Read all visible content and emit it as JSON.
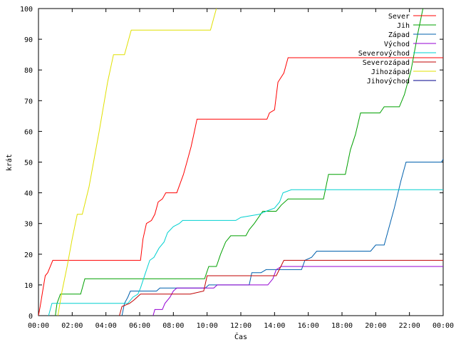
{
  "chart_data": {
    "type": "line",
    "title": "",
    "xlabel": "Čas",
    "ylabel": "krát",
    "xlim": [
      0,
      24
    ],
    "ylim": [
      0,
      100
    ],
    "grid": false,
    "legend_position": "top-right",
    "x_ticks": [
      {
        "value": 0,
        "label": "00:00"
      },
      {
        "value": 2,
        "label": "02:00"
      },
      {
        "value": 4,
        "label": "04:00"
      },
      {
        "value": 6,
        "label": "06:00"
      },
      {
        "value": 8,
        "label": "08:00"
      },
      {
        "value": 10,
        "label": "10:00"
      },
      {
        "value": 12,
        "label": "12:00"
      },
      {
        "value": 14,
        "label": "14:00"
      },
      {
        "value": 16,
        "label": "16:00"
      },
      {
        "value": 18,
        "label": "18:00"
      },
      {
        "value": 20,
        "label": "20:00"
      },
      {
        "value": 22,
        "label": "22:00"
      },
      {
        "value": 24,
        "label": "00:00"
      }
    ],
    "y_ticks": [
      {
        "value": 0,
        "label": "0"
      },
      {
        "value": 10,
        "label": "10"
      },
      {
        "value": 20,
        "label": "20"
      },
      {
        "value": 30,
        "label": "30"
      },
      {
        "value": 40,
        "label": "40"
      },
      {
        "value": 50,
        "label": "50"
      },
      {
        "value": 60,
        "label": "60"
      },
      {
        "value": 70,
        "label": "70"
      },
      {
        "value": 80,
        "label": "80"
      },
      {
        "value": 90,
        "label": "90"
      },
      {
        "value": 100,
        "label": "100"
      }
    ],
    "series": [
      {
        "name": "Sever",
        "color": "#ff0000",
        "points": [
          [
            0,
            0
          ],
          [
            0.1,
            3
          ],
          [
            0.25,
            8
          ],
          [
            0.4,
            13
          ],
          [
            0.55,
            14
          ],
          [
            0.85,
            18
          ],
          [
            6.05,
            18
          ],
          [
            6.2,
            25
          ],
          [
            6.4,
            30
          ],
          [
            6.7,
            31
          ],
          [
            6.9,
            33
          ],
          [
            7.1,
            37
          ],
          [
            7.35,
            38
          ],
          [
            7.55,
            40
          ],
          [
            8.2,
            40
          ],
          [
            8.6,
            46
          ],
          [
            8.8,
            50
          ],
          [
            9.05,
            55
          ],
          [
            9.25,
            60
          ],
          [
            9.4,
            64
          ],
          [
            13.55,
            64
          ],
          [
            13.7,
            66
          ],
          [
            14,
            67
          ],
          [
            14.2,
            76
          ],
          [
            14.55,
            79
          ],
          [
            14.8,
            84
          ],
          [
            24,
            84
          ]
        ]
      },
      {
        "name": "Jih",
        "color": "#00a000",
        "points": [
          [
            1.0,
            0
          ],
          [
            1.1,
            4
          ],
          [
            1.3,
            7
          ],
          [
            2.5,
            7
          ],
          [
            2.75,
            12
          ],
          [
            9.85,
            12
          ],
          [
            10.1,
            16
          ],
          [
            10.55,
            16
          ],
          [
            10.8,
            20
          ],
          [
            11.1,
            24
          ],
          [
            11.4,
            26
          ],
          [
            12.3,
            26
          ],
          [
            12.5,
            28
          ],
          [
            12.8,
            30
          ],
          [
            13.3,
            34
          ],
          [
            14.1,
            34
          ],
          [
            14.4,
            36
          ],
          [
            14.8,
            38
          ],
          [
            16.9,
            38
          ],
          [
            17.2,
            46
          ],
          [
            18.2,
            46
          ],
          [
            18.5,
            54
          ],
          [
            18.8,
            59
          ],
          [
            19.1,
            66
          ],
          [
            20.25,
            66
          ],
          [
            20.5,
            68
          ],
          [
            21.4,
            68
          ],
          [
            21.7,
            72
          ],
          [
            22.1,
            80
          ],
          [
            22.5,
            92
          ],
          [
            22.8,
            100
          ]
        ]
      },
      {
        "name": "Západ",
        "color": "#0060ad",
        "points": [
          [
            4.95,
            0
          ],
          [
            5.1,
            4
          ],
          [
            5.3,
            6
          ],
          [
            5.45,
            8
          ],
          [
            7.0,
            8
          ],
          [
            7.2,
            9
          ],
          [
            9.9,
            9
          ],
          [
            10.1,
            10
          ],
          [
            12.5,
            10
          ],
          [
            12.65,
            14
          ],
          [
            13.2,
            14
          ],
          [
            13.5,
            15
          ],
          [
            15.6,
            15
          ],
          [
            15.8,
            18
          ],
          [
            16.2,
            19
          ],
          [
            16.5,
            21
          ],
          [
            19.7,
            21
          ],
          [
            20,
            23
          ],
          [
            20.5,
            23
          ],
          [
            20.8,
            29
          ],
          [
            21.1,
            35
          ],
          [
            21.5,
            44
          ],
          [
            21.8,
            50
          ],
          [
            23.9,
            50
          ],
          [
            24,
            51
          ]
        ]
      },
      {
        "name": "Východ",
        "color": "#9400d3",
        "points": [
          [
            6.8,
            0
          ],
          [
            6.9,
            2
          ],
          [
            7.35,
            2
          ],
          [
            7.5,
            4
          ],
          [
            7.8,
            6
          ],
          [
            8.0,
            8
          ],
          [
            8.2,
            9
          ],
          [
            10.4,
            9
          ],
          [
            10.6,
            10
          ],
          [
            13.6,
            10
          ],
          [
            13.9,
            12
          ],
          [
            14.1,
            15
          ],
          [
            14.4,
            16
          ],
          [
            24,
            16
          ]
        ]
      },
      {
        "name": "Severovýchod",
        "color": "#00d0d0",
        "points": [
          [
            0.6,
            0
          ],
          [
            0.8,
            4
          ],
          [
            4.9,
            4
          ],
          [
            5.3,
            4
          ],
          [
            5.6,
            6
          ],
          [
            5.9,
            7
          ],
          [
            6.05,
            9
          ],
          [
            6.35,
            14
          ],
          [
            6.6,
            18
          ],
          [
            6.85,
            19
          ],
          [
            7.15,
            22
          ],
          [
            7.45,
            24
          ],
          [
            7.65,
            27
          ],
          [
            8.0,
            29
          ],
          [
            8.35,
            30
          ],
          [
            8.55,
            31
          ],
          [
            11.7,
            31
          ],
          [
            12.0,
            32
          ],
          [
            13.1,
            33
          ],
          [
            13.5,
            34
          ],
          [
            14.0,
            35
          ],
          [
            14.3,
            37
          ],
          [
            14.5,
            40
          ],
          [
            15,
            41
          ],
          [
            24,
            41
          ]
        ]
      },
      {
        "name": "Severozápad",
        "color": "#c00000",
        "points": [
          [
            4.8,
            0
          ],
          [
            4.95,
            3
          ],
          [
            5.4,
            4
          ],
          [
            5.65,
            5
          ],
          [
            6.05,
            7
          ],
          [
            9.0,
            7
          ],
          [
            9.8,
            8
          ],
          [
            10.0,
            13
          ],
          [
            14.1,
            13
          ],
          [
            14.55,
            18
          ],
          [
            24,
            18
          ]
        ]
      },
      {
        "name": "Jihozápad",
        "color": "#e0e000",
        "points": [
          [
            1.15,
            0
          ],
          [
            1.4,
            8
          ],
          [
            1.7,
            16
          ],
          [
            2.0,
            25
          ],
          [
            2.3,
            33
          ],
          [
            2.6,
            33
          ],
          [
            3.0,
            42
          ],
          [
            3.6,
            60
          ],
          [
            4.1,
            76
          ],
          [
            4.45,
            85
          ],
          [
            5.1,
            85
          ],
          [
            5.5,
            93
          ],
          [
            10.2,
            93
          ],
          [
            10.45,
            98
          ],
          [
            10.55,
            100
          ]
        ]
      },
      {
        "name": "Jihovýchod",
        "color": "#00008b",
        "points": []
      }
    ]
  }
}
